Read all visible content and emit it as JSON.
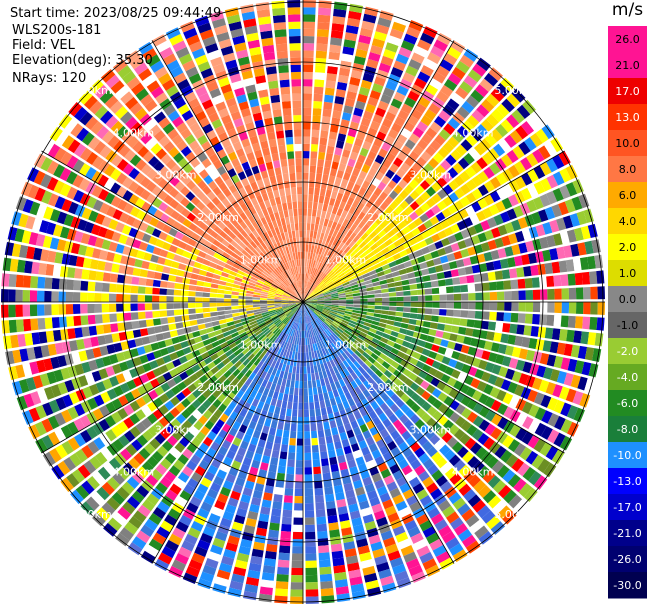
{
  "info": {
    "start_time": "Start time: 2023/08/25 09:44:49",
    "instrument": "WLS200s-181",
    "field": "Field: VEL",
    "elevation": "Elevation(deg): 35.30",
    "nrays": "NRays: 120"
  },
  "range_rings": [
    "1.00km",
    "2.00km",
    "3.00km",
    "4.00km",
    "5.00km"
  ],
  "colorbar": {
    "unit": "m/s",
    "ticks": [
      "26.0",
      "21.0",
      "17.0",
      "13.0",
      "10.0",
      "8.0",
      "6.0",
      "4.0",
      "2.0",
      "1.0",
      "0.0",
      "-1.0",
      "-2.0",
      "-4.0",
      "-6.0",
      "-8.0",
      "-10.0",
      "-13.0",
      "-17.0",
      "-21.0",
      "-26.0",
      "-30.0"
    ],
    "colors": [
      "#ff1493",
      "#ff1493",
      "#ee0000",
      "#ff3300",
      "#ff5522",
      "#ff7744",
      "#ffaa00",
      "#ffd700",
      "#ffff00",
      "#dddd00",
      "#888888",
      "#666666",
      "#99cc33",
      "#66aa22",
      "#228b22",
      "#1a7f3a",
      "#1e90ff",
      "#0000ff",
      "#0000cd",
      "#00008b",
      "#000070",
      "#000050"
    ]
  }
}
